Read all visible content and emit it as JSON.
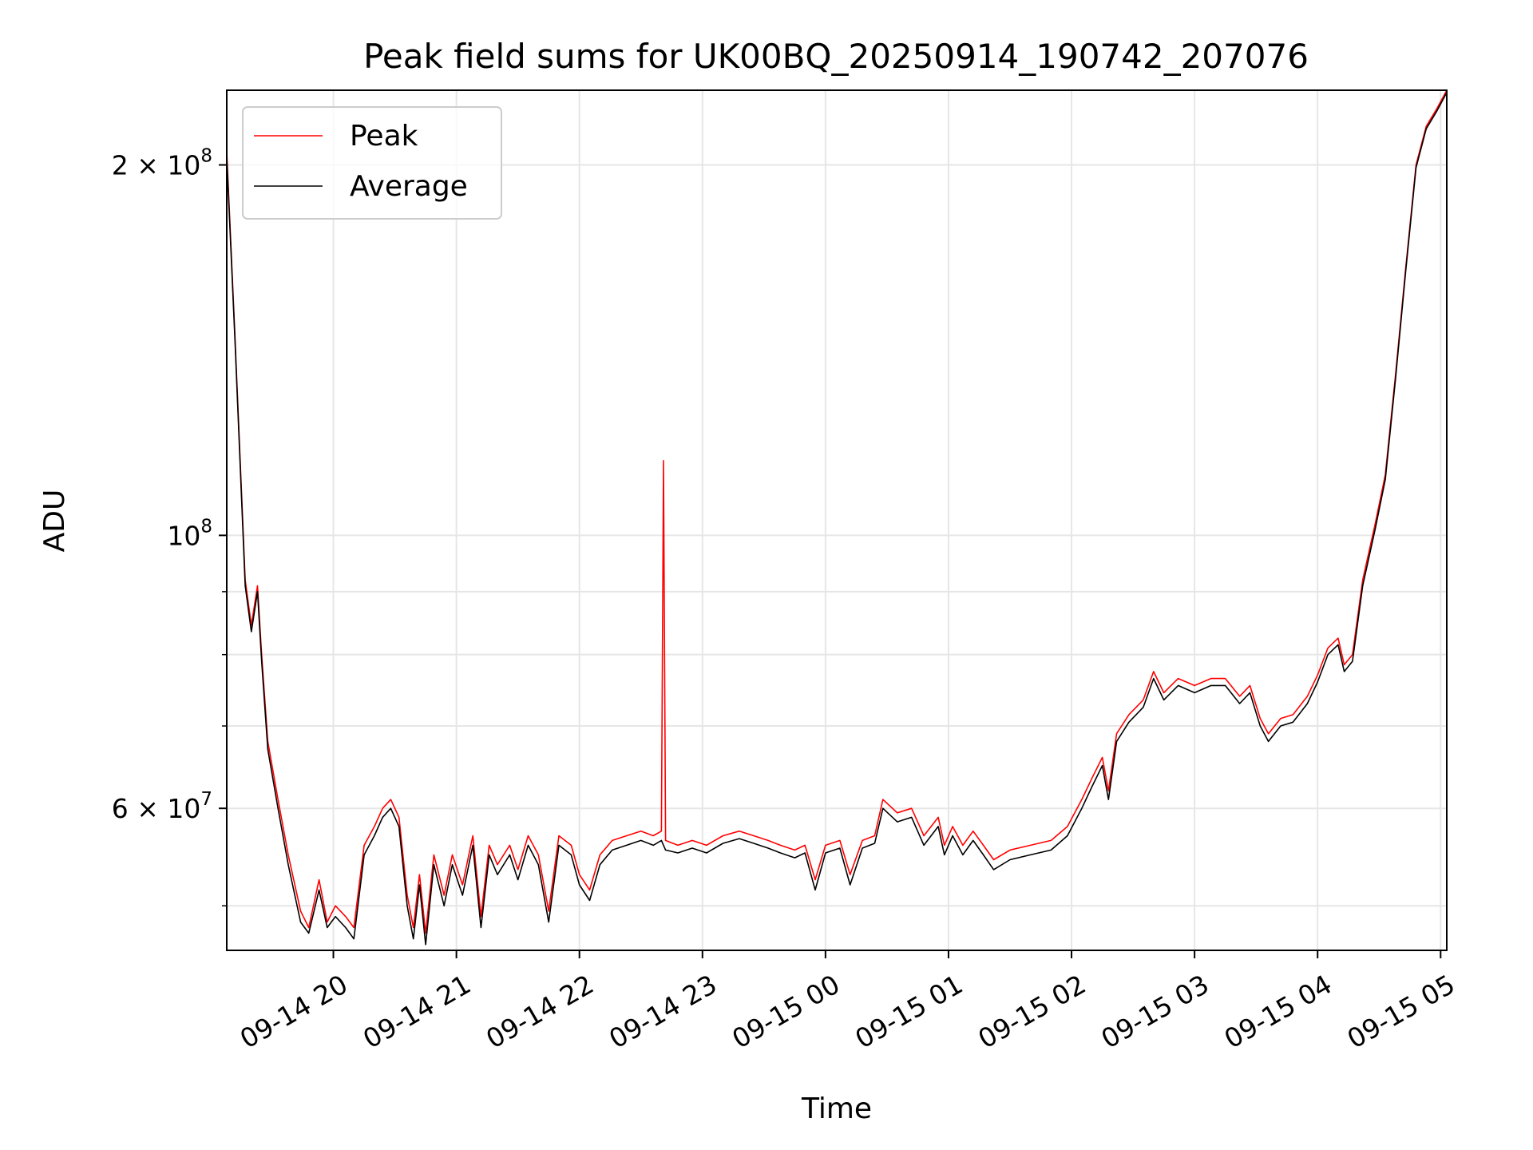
{
  "chart_data": {
    "type": "line",
    "title": "Peak field sums for UK00BQ_20250914_190742_207076",
    "xlabel": "Time",
    "ylabel": "ADU",
    "y_scale": "log",
    "ylim": [
      46000000,
      230000000
    ],
    "x_range": [
      "2025-09-14T19:08",
      "2025-09-15T05:03"
    ],
    "grid": true,
    "legend_position": "top-left",
    "x_ticks": [
      {
        "t": "2025-09-14T20:00",
        "label": "09-14 20"
      },
      {
        "t": "2025-09-14T21:00",
        "label": "09-14 21"
      },
      {
        "t": "2025-09-14T22:00",
        "label": "09-14 22"
      },
      {
        "t": "2025-09-14T23:00",
        "label": "09-14 23"
      },
      {
        "t": "2025-09-15T00:00",
        "label": "09-15 00"
      },
      {
        "t": "2025-09-15T01:00",
        "label": "09-15 01"
      },
      {
        "t": "2025-09-15T02:00",
        "label": "09-15 02"
      },
      {
        "t": "2025-09-15T03:00",
        "label": "09-15 03"
      },
      {
        "t": "2025-09-15T04:00",
        "label": "09-15 04"
      },
      {
        "t": "2025-09-15T05:00",
        "label": "09-15 05"
      }
    ],
    "y_ticks": [
      {
        "value": 60000000,
        "label_base": "6 × 10",
        "label_exp": "7"
      },
      {
        "value": 100000000,
        "label_base": "10",
        "label_exp": "8"
      },
      {
        "value": 200000000,
        "label_base": "2 × 10",
        "label_exp": "8"
      }
    ],
    "y_minor_ticks": [
      50000000,
      70000000,
      80000000,
      90000000
    ],
    "series": [
      {
        "name": "Peak",
        "color": "#ff0000",
        "points": [
          [
            "2025-09-14T19:08",
            205000000
          ],
          [
            "2025-09-14T19:12",
            145000000
          ],
          [
            "2025-09-14T19:17",
            92000000
          ],
          [
            "2025-09-14T19:20",
            84500000
          ],
          [
            "2025-09-14T19:23",
            91000000
          ],
          [
            "2025-09-14T19:25",
            80000000
          ],
          [
            "2025-09-14T19:28",
            68000000
          ],
          [
            "2025-09-14T19:33",
            61000000
          ],
          [
            "2025-09-14T19:38",
            55000000
          ],
          [
            "2025-09-14T19:44",
            49500000
          ],
          [
            "2025-09-14T19:48",
            48000000
          ],
          [
            "2025-09-14T19:53",
            52500000
          ],
          [
            "2025-09-14T19:57",
            48500000
          ],
          [
            "2025-09-14T20:01",
            50000000
          ],
          [
            "2025-09-14T20:06",
            49000000
          ],
          [
            "2025-09-14T20:10",
            48000000
          ],
          [
            "2025-09-14T20:15",
            56000000
          ],
          [
            "2025-09-14T20:20",
            58000000
          ],
          [
            "2025-09-14T20:24",
            60000000
          ],
          [
            "2025-09-14T20:28",
            61000000
          ],
          [
            "2025-09-14T20:32",
            59000000
          ],
          [
            "2025-09-14T20:36",
            51000000
          ],
          [
            "2025-09-14T20:39",
            48000000
          ],
          [
            "2025-09-14T20:42",
            53000000
          ],
          [
            "2025-09-14T20:45",
            47500000
          ],
          [
            "2025-09-14T20:49",
            55000000
          ],
          [
            "2025-09-14T20:54",
            51000000
          ],
          [
            "2025-09-14T20:58",
            55000000
          ],
          [
            "2025-09-14T21:03",
            52000000
          ],
          [
            "2025-09-14T21:08",
            57000000
          ],
          [
            "2025-09-14T21:12",
            49000000
          ],
          [
            "2025-09-14T21:16",
            56000000
          ],
          [
            "2025-09-14T21:20",
            54000000
          ],
          [
            "2025-09-14T21:26",
            56000000
          ],
          [
            "2025-09-14T21:30",
            53500000
          ],
          [
            "2025-09-14T21:35",
            57000000
          ],
          [
            "2025-09-14T21:40",
            55000000
          ],
          [
            "2025-09-14T21:45",
            49500000
          ],
          [
            "2025-09-14T21:50",
            57000000
          ],
          [
            "2025-09-14T21:56",
            56000000
          ],
          [
            "2025-09-14T22:00",
            53000000
          ],
          [
            "2025-09-14T22:05",
            51500000
          ],
          [
            "2025-09-14T22:10",
            55000000
          ],
          [
            "2025-09-14T22:16",
            56500000
          ],
          [
            "2025-09-14T22:23",
            57000000
          ],
          [
            "2025-09-14T22:30",
            57500000
          ],
          [
            "2025-09-14T22:36",
            57000000
          ],
          [
            "2025-09-14T22:40",
            57500000
          ],
          [
            "2025-09-14T22:41",
            115000000
          ],
          [
            "2025-09-14T22:42",
            56500000
          ],
          [
            "2025-09-14T22:48",
            56000000
          ],
          [
            "2025-09-14T22:55",
            56500000
          ],
          [
            "2025-09-14T23:02",
            56000000
          ],
          [
            "2025-09-14T23:10",
            57000000
          ],
          [
            "2025-09-14T23:18",
            57500000
          ],
          [
            "2025-09-14T23:25",
            57000000
          ],
          [
            "2025-09-14T23:32",
            56500000
          ],
          [
            "2025-09-14T23:38",
            56000000
          ],
          [
            "2025-09-14T23:45",
            55500000
          ],
          [
            "2025-09-14T23:50",
            56000000
          ],
          [
            "2025-09-14T23:55",
            52500000
          ],
          [
            "2025-09-15T00:00",
            56000000
          ],
          [
            "2025-09-15T00:07",
            56500000
          ],
          [
            "2025-09-15T00:12",
            53000000
          ],
          [
            "2025-09-15T00:18",
            56500000
          ],
          [
            "2025-09-15T00:24",
            57000000
          ],
          [
            "2025-09-15T00:28",
            61000000
          ],
          [
            "2025-09-15T00:35",
            59500000
          ],
          [
            "2025-09-15T00:42",
            60000000
          ],
          [
            "2025-09-15T00:48",
            57000000
          ],
          [
            "2025-09-15T00:55",
            59000000
          ],
          [
            "2025-09-15T00:58",
            56000000
          ],
          [
            "2025-09-15T01:02",
            58000000
          ],
          [
            "2025-09-15T01:07",
            56000000
          ],
          [
            "2025-09-15T01:12",
            57500000
          ],
          [
            "2025-09-15T01:17",
            56000000
          ],
          [
            "2025-09-15T01:22",
            54500000
          ],
          [
            "2025-09-15T01:30",
            55500000
          ],
          [
            "2025-09-15T01:40",
            56000000
          ],
          [
            "2025-09-15T01:50",
            56500000
          ],
          [
            "2025-09-15T01:58",
            58000000
          ],
          [
            "2025-09-15T02:05",
            61000000
          ],
          [
            "2025-09-15T02:10",
            63500000
          ],
          [
            "2025-09-15T02:15",
            66000000
          ],
          [
            "2025-09-15T02:18",
            62000000
          ],
          [
            "2025-09-15T02:22",
            69000000
          ],
          [
            "2025-09-15T02:28",
            71500000
          ],
          [
            "2025-09-15T02:35",
            73500000
          ],
          [
            "2025-09-15T02:40",
            77500000
          ],
          [
            "2025-09-15T02:45",
            74500000
          ],
          [
            "2025-09-15T02:52",
            76500000
          ],
          [
            "2025-09-15T03:00",
            75500000
          ],
          [
            "2025-09-15T03:08",
            76500000
          ],
          [
            "2025-09-15T03:15",
            76500000
          ],
          [
            "2025-09-15T03:22",
            74000000
          ],
          [
            "2025-09-15T03:27",
            75500000
          ],
          [
            "2025-09-15T03:32",
            71000000
          ],
          [
            "2025-09-15T03:36",
            69000000
          ],
          [
            "2025-09-15T03:42",
            71000000
          ],
          [
            "2025-09-15T03:48",
            71500000
          ],
          [
            "2025-09-15T03:55",
            74000000
          ],
          [
            "2025-09-15T04:00",
            77000000
          ],
          [
            "2025-09-15T04:05",
            81000000
          ],
          [
            "2025-09-15T04:10",
            82500000
          ],
          [
            "2025-09-15T04:13",
            78500000
          ],
          [
            "2025-09-15T04:17",
            80000000
          ],
          [
            "2025-09-15T04:22",
            92000000
          ],
          [
            "2025-09-15T04:28",
            102000000
          ],
          [
            "2025-09-15T04:33",
            112000000
          ],
          [
            "2025-09-15T04:38",
            135000000
          ],
          [
            "2025-09-15T04:43",
            165000000
          ],
          [
            "2025-09-15T04:48",
            200000000
          ],
          [
            "2025-09-15T04:53",
            215000000
          ],
          [
            "2025-09-15T04:58",
            222000000
          ],
          [
            "2025-09-15T05:03",
            230000000
          ]
        ]
      },
      {
        "name": "Average",
        "color": "#000000",
        "points": [
          [
            "2025-09-14T19:08",
            203000000
          ],
          [
            "2025-09-14T19:12",
            144000000
          ],
          [
            "2025-09-14T19:17",
            91000000
          ],
          [
            "2025-09-14T19:20",
            83500000
          ],
          [
            "2025-09-14T19:23",
            90000000
          ],
          [
            "2025-09-14T19:25",
            79000000
          ],
          [
            "2025-09-14T19:28",
            67000000
          ],
          [
            "2025-09-14T19:33",
            60000000
          ],
          [
            "2025-09-14T19:38",
            54000000
          ],
          [
            "2025-09-14T19:44",
            48500000
          ],
          [
            "2025-09-14T19:48",
            47500000
          ],
          [
            "2025-09-14T19:53",
            51500000
          ],
          [
            "2025-09-14T19:57",
            48000000
          ],
          [
            "2025-09-14T20:01",
            49000000
          ],
          [
            "2025-09-14T20:06",
            48000000
          ],
          [
            "2025-09-14T20:10",
            47000000
          ],
          [
            "2025-09-14T20:15",
            55000000
          ],
          [
            "2025-09-14T20:20",
            57000000
          ],
          [
            "2025-09-14T20:24",
            59000000
          ],
          [
            "2025-09-14T20:28",
            60000000
          ],
          [
            "2025-09-14T20:32",
            58000000
          ],
          [
            "2025-09-14T20:36",
            50000000
          ],
          [
            "2025-09-14T20:39",
            47000000
          ],
          [
            "2025-09-14T20:42",
            52000000
          ],
          [
            "2025-09-14T20:45",
            46500000
          ],
          [
            "2025-09-14T20:49",
            54000000
          ],
          [
            "2025-09-14T20:54",
            50000000
          ],
          [
            "2025-09-14T20:58",
            54000000
          ],
          [
            "2025-09-14T21:03",
            51000000
          ],
          [
            "2025-09-14T21:08",
            56000000
          ],
          [
            "2025-09-14T21:12",
            48000000
          ],
          [
            "2025-09-14T21:16",
            55000000
          ],
          [
            "2025-09-14T21:20",
            53000000
          ],
          [
            "2025-09-14T21:26",
            55000000
          ],
          [
            "2025-09-14T21:30",
            52500000
          ],
          [
            "2025-09-14T21:35",
            56000000
          ],
          [
            "2025-09-14T21:40",
            54000000
          ],
          [
            "2025-09-14T21:45",
            48500000
          ],
          [
            "2025-09-14T21:50",
            56000000
          ],
          [
            "2025-09-14T21:56",
            55000000
          ],
          [
            "2025-09-14T22:00",
            52000000
          ],
          [
            "2025-09-14T22:05",
            50500000
          ],
          [
            "2025-09-14T22:10",
            54000000
          ],
          [
            "2025-09-14T22:16",
            55500000
          ],
          [
            "2025-09-14T22:23",
            56000000
          ],
          [
            "2025-09-14T22:30",
            56500000
          ],
          [
            "2025-09-14T22:36",
            56000000
          ],
          [
            "2025-09-14T22:40",
            56500000
          ],
          [
            "2025-09-14T22:41",
            56000000
          ],
          [
            "2025-09-14T22:42",
            55500000
          ],
          [
            "2025-09-14T22:48",
            55200000
          ],
          [
            "2025-09-14T22:55",
            55700000
          ],
          [
            "2025-09-14T23:02",
            55200000
          ],
          [
            "2025-09-14T23:10",
            56200000
          ],
          [
            "2025-09-14T23:18",
            56700000
          ],
          [
            "2025-09-14T23:25",
            56200000
          ],
          [
            "2025-09-14T23:32",
            55700000
          ],
          [
            "2025-09-14T23:38",
            55200000
          ],
          [
            "2025-09-14T23:45",
            54700000
          ],
          [
            "2025-09-14T23:50",
            55200000
          ],
          [
            "2025-09-14T23:55",
            51500000
          ],
          [
            "2025-09-15T00:00",
            55200000
          ],
          [
            "2025-09-15T00:07",
            55700000
          ],
          [
            "2025-09-15T00:12",
            52000000
          ],
          [
            "2025-09-15T00:18",
            55700000
          ],
          [
            "2025-09-15T00:24",
            56200000
          ],
          [
            "2025-09-15T00:28",
            60000000
          ],
          [
            "2025-09-15T00:35",
            58500000
          ],
          [
            "2025-09-15T00:42",
            59000000
          ],
          [
            "2025-09-15T00:48",
            56000000
          ],
          [
            "2025-09-15T00:55",
            58000000
          ],
          [
            "2025-09-15T00:58",
            55000000
          ],
          [
            "2025-09-15T01:02",
            57000000
          ],
          [
            "2025-09-15T01:07",
            55000000
          ],
          [
            "2025-09-15T01:12",
            56500000
          ],
          [
            "2025-09-15T01:17",
            55000000
          ],
          [
            "2025-09-15T01:22",
            53500000
          ],
          [
            "2025-09-15T01:30",
            54500000
          ],
          [
            "2025-09-15T01:40",
            55000000
          ],
          [
            "2025-09-15T01:50",
            55500000
          ],
          [
            "2025-09-15T01:58",
            57000000
          ],
          [
            "2025-09-15T02:05",
            60000000
          ],
          [
            "2025-09-15T02:10",
            62500000
          ],
          [
            "2025-09-15T02:15",
            65000000
          ],
          [
            "2025-09-15T02:18",
            61000000
          ],
          [
            "2025-09-15T02:22",
            68000000
          ],
          [
            "2025-09-15T02:28",
            70500000
          ],
          [
            "2025-09-15T02:35",
            72500000
          ],
          [
            "2025-09-15T02:40",
            76500000
          ],
          [
            "2025-09-15T02:45",
            73500000
          ],
          [
            "2025-09-15T02:52",
            75500000
          ],
          [
            "2025-09-15T03:00",
            74500000
          ],
          [
            "2025-09-15T03:08",
            75500000
          ],
          [
            "2025-09-15T03:15",
            75500000
          ],
          [
            "2025-09-15T03:22",
            73000000
          ],
          [
            "2025-09-15T03:27",
            74500000
          ],
          [
            "2025-09-15T03:32",
            70000000
          ],
          [
            "2025-09-15T03:36",
            68000000
          ],
          [
            "2025-09-15T03:42",
            70000000
          ],
          [
            "2025-09-15T03:48",
            70500000
          ],
          [
            "2025-09-15T03:55",
            73000000
          ],
          [
            "2025-09-15T04:00",
            76000000
          ],
          [
            "2025-09-15T04:05",
            80000000
          ],
          [
            "2025-09-15T04:10",
            81500000
          ],
          [
            "2025-09-15T04:13",
            77500000
          ],
          [
            "2025-09-15T04:17",
            79000000
          ],
          [
            "2025-09-15T04:22",
            91000000
          ],
          [
            "2025-09-15T04:28",
            101000000
          ],
          [
            "2025-09-15T04:33",
            111000000
          ],
          [
            "2025-09-15T04:38",
            134000000
          ],
          [
            "2025-09-15T04:43",
            164000000
          ],
          [
            "2025-09-15T04:48",
            199000000
          ],
          [
            "2025-09-15T04:53",
            214000000
          ],
          [
            "2025-09-15T04:58",
            221000000
          ],
          [
            "2025-09-15T05:03",
            229000000
          ]
        ]
      }
    ]
  }
}
